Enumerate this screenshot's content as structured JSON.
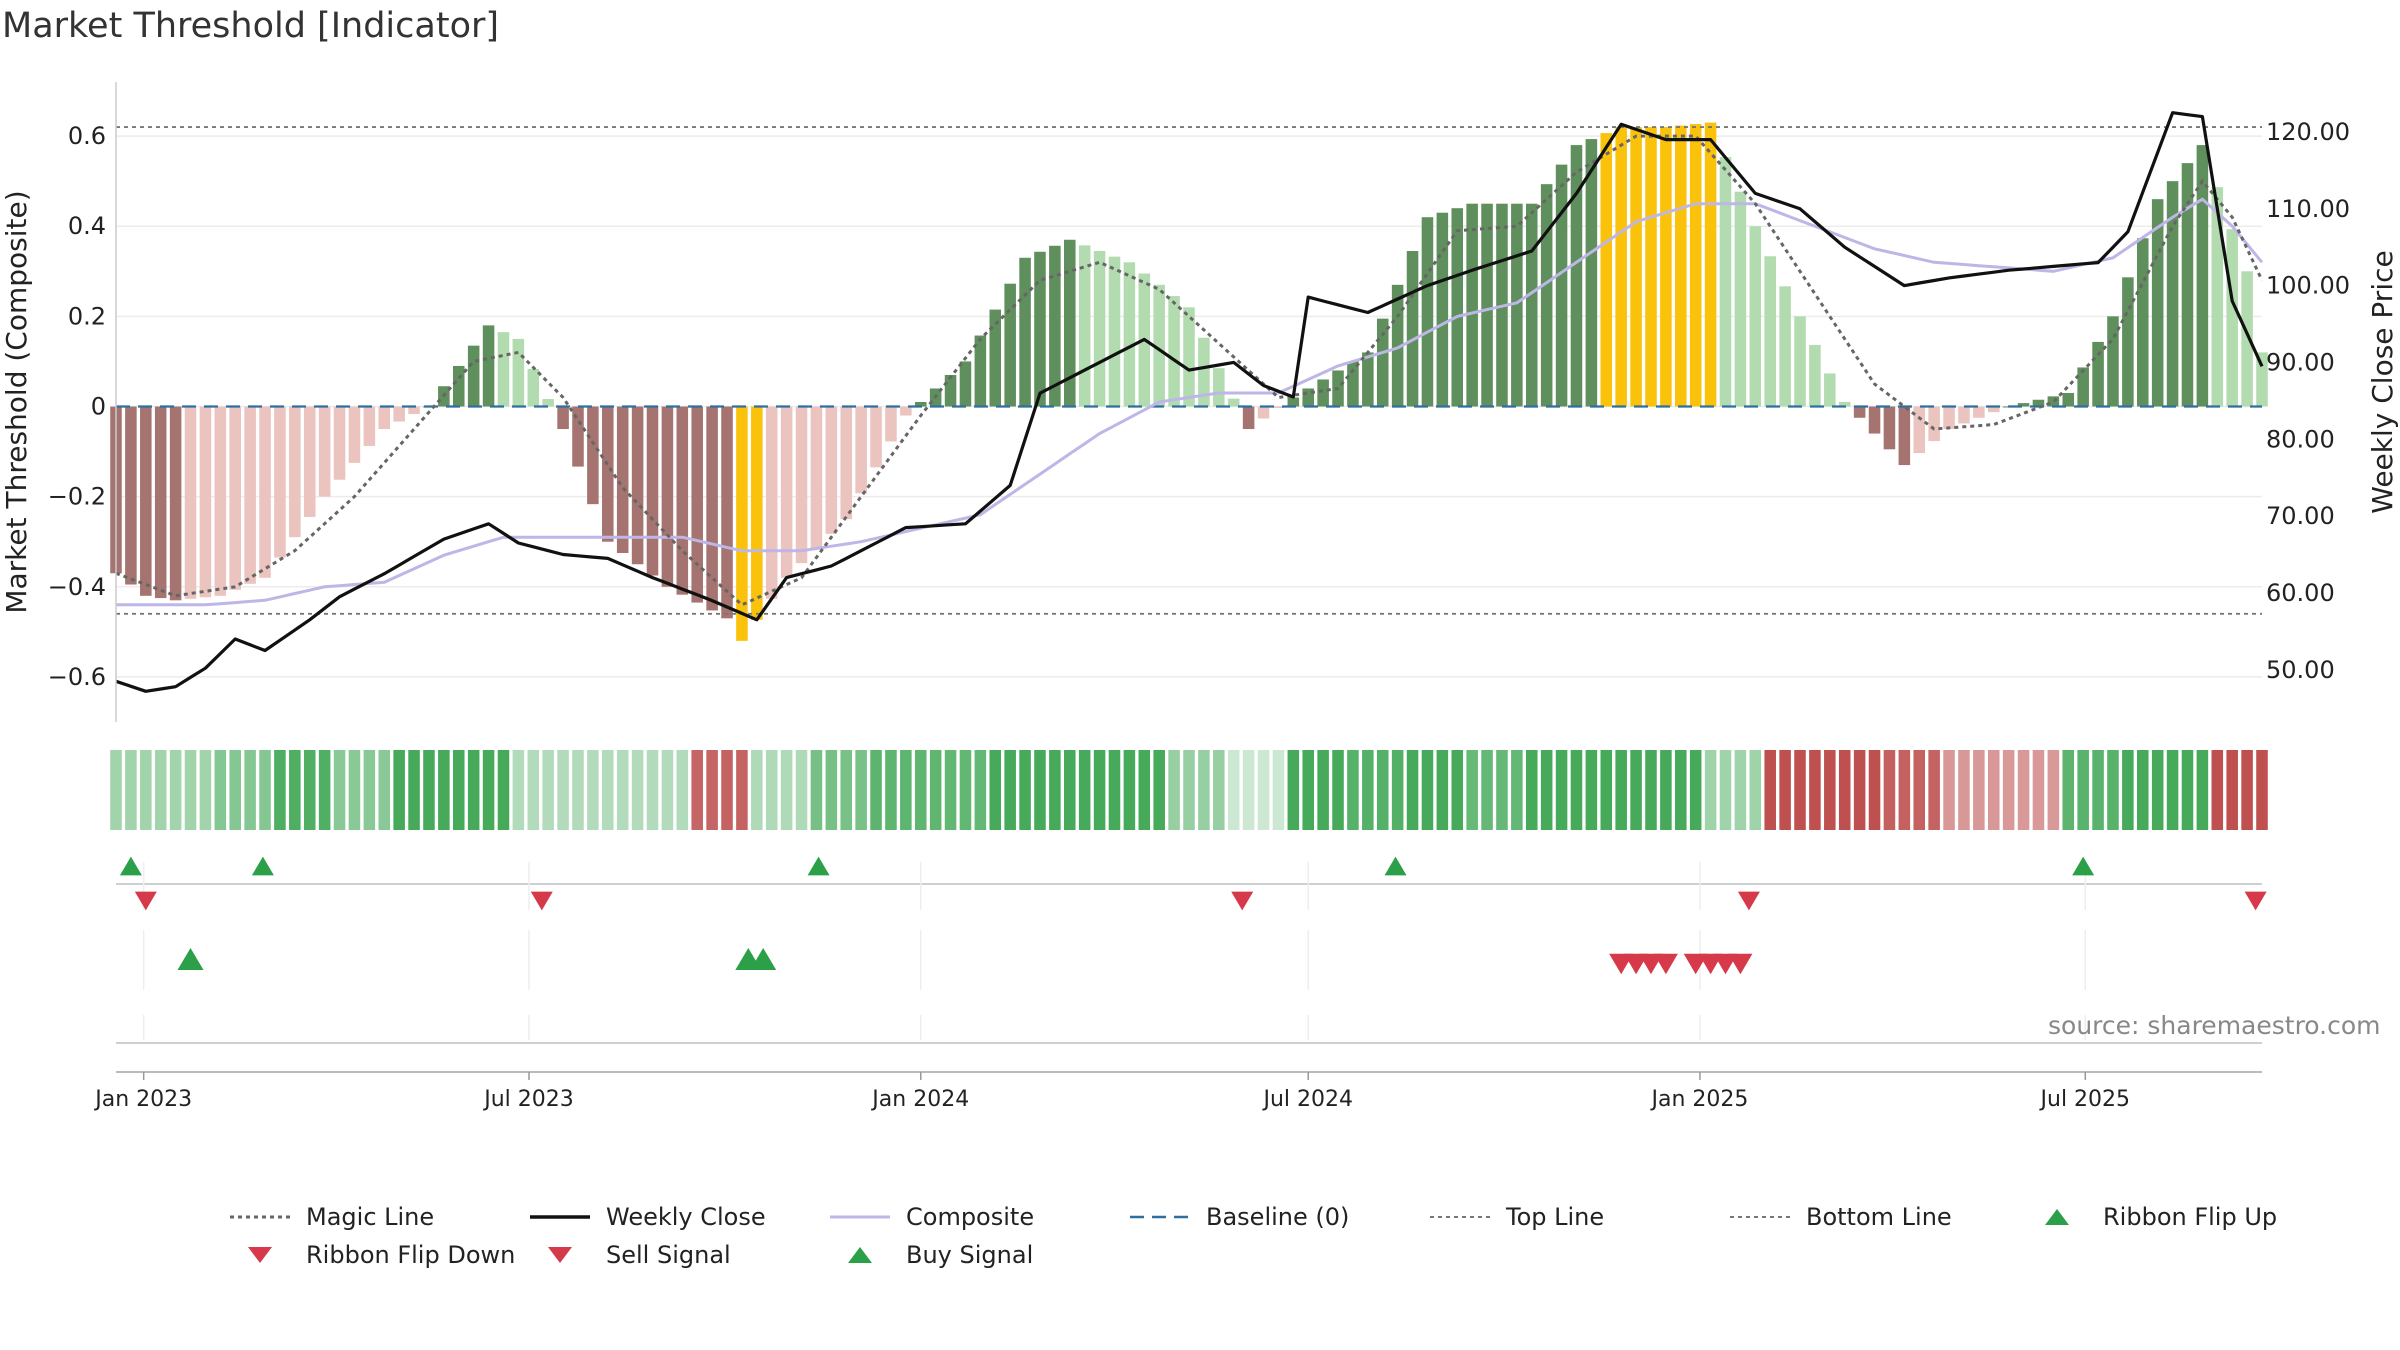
{
  "title": "Market Threshold [Indicator]",
  "source": "source: sharemaestro.com",
  "colors": {
    "bar_pos_strong": "#5f8f5c",
    "bar_pos_weak": "#b3dbb0",
    "bar_neg_strong": "#a57470",
    "bar_neg_weak": "#ebc3bf",
    "bar_extreme": "#fbc20b",
    "close": "#111111",
    "composite": "#bdb6e6",
    "magic": "#666666",
    "baseline": "#2f6f9f",
    "threshold": "#777777",
    "buy": "#2ca048",
    "sell": "#d63a4a"
  },
  "legend": [
    {
      "label": "Magic Line",
      "marker": "dot-line"
    },
    {
      "label": "Weekly Close",
      "marker": "solid-line"
    },
    {
      "label": "Composite",
      "marker": "light-line"
    },
    {
      "label": "Baseline (0)",
      "marker": "dash-line"
    },
    {
      "label": "Top Line",
      "marker": "fine-dash-line"
    },
    {
      "label": "Bottom Line",
      "marker": "fine-dash-line"
    },
    {
      "label": "Ribbon Flip Up",
      "marker": "triangle-up-green"
    },
    {
      "label": "Ribbon Flip Down",
      "marker": "triangle-down-red"
    },
    {
      "label": "Sell Signal",
      "marker": "triangle-down-red"
    },
    {
      "label": "Buy Signal",
      "marker": "triangle-up-green"
    }
  ],
  "chart_data": {
    "type": "bar",
    "ylabel_left": "Market Threshold (Composite)",
    "ylabel_right": "Weekly Close Price",
    "ylim_left": [
      -0.7,
      0.72
    ],
    "ylim_right": [
      43.2,
      126.5
    ],
    "yticks_left": [
      0.6,
      0.4,
      0.2,
      0,
      -0.2,
      -0.4,
      -0.6
    ],
    "yticks_left_labels": [
      "0.6",
      "0.4",
      "0.2",
      "0",
      "−0.2",
      "−0.4",
      "−0.6"
    ],
    "yticks_right": [
      120,
      110,
      100,
      90,
      80,
      70,
      60,
      50
    ],
    "yticks_right_labels": [
      "120.00",
      "110.00",
      "100.00",
      "90.00",
      "80.00",
      "70.00",
      "60.00",
      "50.00"
    ],
    "x_range": [
      "2022-12-19",
      "2025-09-22"
    ],
    "xticks": [
      {
        "date": "2023-01-01",
        "label": "Jan 2023"
      },
      {
        "date": "2023-07-01",
        "label": "Jul 2023"
      },
      {
        "date": "2024-01-01",
        "label": "Jan 2024"
      },
      {
        "date": "2024-07-01",
        "label": "Jul 2024"
      },
      {
        "date": "2025-01-01",
        "label": "Jan 2025"
      },
      {
        "date": "2025-07-01",
        "label": "Jul 2025"
      }
    ],
    "top_line": 0.62,
    "bottom_line": -0.46,
    "baseline": 0,
    "composite_key": [
      [
        "2022-12-19",
        -0.37
      ],
      [
        "2023-01-02",
        -0.42
      ],
      [
        "2023-01-16",
        -0.43
      ],
      [
        "2023-02-06",
        -0.42
      ],
      [
        "2023-02-27",
        -0.38
      ],
      [
        "2023-03-27",
        -0.2
      ],
      [
        "2023-04-24",
        -0.05
      ],
      [
        "2023-05-15",
        0
      ],
      [
        "2023-06-12",
        0.18
      ],
      [
        "2023-06-26",
        0.15
      ],
      [
        "2023-07-17",
        -0.05
      ],
      [
        "2023-08-07",
        -0.3
      ],
      [
        "2023-09-04",
        -0.4
      ],
      [
        "2023-10-02",
        -0.47
      ],
      [
        "2023-10-09",
        -0.52
      ],
      [
        "2023-10-30",
        -0.38
      ],
      [
        "2023-11-27",
        -0.25
      ],
      [
        "2023-12-25",
        -0.02
      ],
      [
        "2024-01-22",
        0.1
      ],
      [
        "2024-02-19",
        0.33
      ],
      [
        "2024-03-11",
        0.37
      ],
      [
        "2024-04-08",
        0.32
      ],
      [
        "2024-05-06",
        0.22
      ],
      [
        "2024-06-03",
        -0.05
      ],
      [
        "2024-06-24",
        0.02
      ],
      [
        "2024-07-29",
        0.12
      ],
      [
        "2024-08-26",
        0.42
      ],
      [
        "2024-09-16",
        0.45
      ],
      [
        "2024-10-14",
        0.45
      ],
      [
        "2024-11-04",
        0.58
      ],
      [
        "2024-11-25",
        0.62
      ],
      [
        "2024-12-16",
        0.62
      ],
      [
        "2025-01-06",
        0.63
      ],
      [
        "2025-01-27",
        0.4
      ],
      [
        "2025-02-17",
        0.2
      ],
      [
        "2025-03-10",
        0.01
      ],
      [
        "2025-04-07",
        -0.13
      ],
      [
        "2025-04-28",
        -0.05
      ],
      [
        "2025-05-26",
        0
      ],
      [
        "2025-06-23",
        0.03
      ],
      [
        "2025-07-14",
        0.2
      ],
      [
        "2025-08-04",
        0.46
      ],
      [
        "2025-08-25",
        0.58
      ],
      [
        "2025-09-15",
        0.3
      ],
      [
        "2025-09-22",
        0.12
      ]
    ],
    "close_key": [
      [
        "2022-12-19",
        48.5
      ],
      [
        "2023-01-02",
        47.2
      ],
      [
        "2023-01-16",
        47.8
      ],
      [
        "2023-01-30",
        50.2
      ],
      [
        "2023-02-13",
        54
      ],
      [
        "2023-02-27",
        52.5
      ],
      [
        "2023-03-20",
        56.5
      ],
      [
        "2023-04-03",
        59.5
      ],
      [
        "2023-04-24",
        62.5
      ],
      [
        "2023-05-22",
        67
      ],
      [
        "2023-06-12",
        69
      ],
      [
        "2023-06-26",
        66.5
      ],
      [
        "2023-07-17",
        65
      ],
      [
        "2023-08-07",
        64.5
      ],
      [
        "2023-08-28",
        62
      ],
      [
        "2023-09-25",
        59
      ],
      [
        "2023-10-16",
        56.5
      ],
      [
        "2023-10-30",
        62
      ],
      [
        "2023-11-20",
        63.5
      ],
      [
        "2023-12-25",
        68.5
      ],
      [
        "2024-01-22",
        69
      ],
      [
        "2024-02-12",
        74
      ],
      [
        "2024-02-26",
        86
      ],
      [
        "2024-03-11",
        88
      ],
      [
        "2024-03-25",
        90
      ],
      [
        "2024-04-15",
        93
      ],
      [
        "2024-05-06",
        89
      ],
      [
        "2024-05-27",
        90
      ],
      [
        "2024-06-10",
        87
      ],
      [
        "2024-06-24",
        85.5
      ],
      [
        "2024-07-01",
        98.5
      ],
      [
        "2024-07-29",
        96.5
      ],
      [
        "2024-08-26",
        100
      ],
      [
        "2024-09-16",
        102
      ],
      [
        "2024-10-14",
        104.5
      ],
      [
        "2024-11-04",
        112
      ],
      [
        "2024-11-25",
        121
      ],
      [
        "2024-12-16",
        119
      ],
      [
        "2025-01-06",
        119
      ],
      [
        "2025-01-27",
        112
      ],
      [
        "2025-02-17",
        110
      ],
      [
        "2025-03-10",
        105
      ],
      [
        "2025-04-07",
        100
      ],
      [
        "2025-04-28",
        101
      ],
      [
        "2025-05-26",
        102
      ],
      [
        "2025-06-16",
        102.5
      ],
      [
        "2025-07-07",
        103
      ],
      [
        "2025-07-21",
        107
      ],
      [
        "2025-08-11",
        122.5
      ],
      [
        "2025-08-25",
        122
      ],
      [
        "2025-09-08",
        98
      ],
      [
        "2025-09-22",
        89.5
      ]
    ],
    "composite_line_key": [
      [
        "2022-12-19",
        -0.44
      ],
      [
        "2023-01-30",
        -0.44
      ],
      [
        "2023-02-27",
        -0.43
      ],
      [
        "2023-03-27",
        -0.4
      ],
      [
        "2023-04-24",
        -0.39
      ],
      [
        "2023-05-22",
        -0.33
      ],
      [
        "2023-06-19",
        -0.29
      ],
      [
        "2023-07-17",
        -0.29
      ],
      [
        "2023-08-14",
        -0.29
      ],
      [
        "2023-09-11",
        -0.29
      ],
      [
        "2023-10-09",
        -0.32
      ],
      [
        "2023-11-06",
        -0.32
      ],
      [
        "2023-12-04",
        -0.3
      ],
      [
        "2024-01-01",
        -0.27
      ],
      [
        "2024-01-29",
        -0.24
      ],
      [
        "2024-02-26",
        -0.15
      ],
      [
        "2024-03-25",
        -0.06
      ],
      [
        "2024-04-22",
        0.01
      ],
      [
        "2024-05-20",
        0.03
      ],
      [
        "2024-06-17",
        0.03
      ],
      [
        "2024-07-15",
        0.09
      ],
      [
        "2024-08-12",
        0.13
      ],
      [
        "2024-09-09",
        0.2
      ],
      [
        "2024-10-07",
        0.23
      ],
      [
        "2024-11-04",
        0.32
      ],
      [
        "2024-12-02",
        0.41
      ],
      [
        "2024-12-30",
        0.45
      ],
      [
        "2025-01-27",
        0.45
      ],
      [
        "2025-02-24",
        0.4
      ],
      [
        "2025-03-24",
        0.35
      ],
      [
        "2025-04-21",
        0.32
      ],
      [
        "2025-05-19",
        0.31
      ],
      [
        "2025-06-16",
        0.3
      ],
      [
        "2025-07-14",
        0.33
      ],
      [
        "2025-08-11",
        0.42
      ],
      [
        "2025-08-25",
        0.46
      ],
      [
        "2025-09-08",
        0.4
      ],
      [
        "2025-09-22",
        0.32
      ]
    ],
    "magic_line_key": [
      [
        "2022-12-19",
        -0.37
      ],
      [
        "2023-01-16",
        -0.42
      ],
      [
        "2023-02-13",
        -0.4
      ],
      [
        "2023-03-13",
        -0.32
      ],
      [
        "2023-04-10",
        -0.2
      ],
      [
        "2023-05-08",
        -0.05
      ],
      [
        "2023-06-05",
        0.1
      ],
      [
        "2023-06-26",
        0.12
      ],
      [
        "2023-07-17",
        0.02
      ],
      [
        "2023-08-14",
        -0.18
      ],
      [
        "2023-09-11",
        -0.32
      ],
      [
        "2023-10-09",
        -0.44
      ],
      [
        "2023-11-06",
        -0.38
      ],
      [
        "2023-12-04",
        -0.2
      ],
      [
        "2024-01-01",
        -0.02
      ],
      [
        "2024-01-29",
        0.15
      ],
      [
        "2024-02-26",
        0.28
      ],
      [
        "2024-03-25",
        0.32
      ],
      [
        "2024-04-22",
        0.26
      ],
      [
        "2024-05-20",
        0.14
      ],
      [
        "2024-06-17",
        0.02
      ],
      [
        "2024-07-15",
        0.04
      ],
      [
        "2024-08-12",
        0.2
      ],
      [
        "2024-09-09",
        0.39
      ],
      [
        "2024-10-07",
        0.4
      ],
      [
        "2024-11-04",
        0.52
      ],
      [
        "2024-12-02",
        0.6
      ],
      [
        "2024-12-30",
        0.6
      ],
      [
        "2025-01-27",
        0.45
      ],
      [
        "2025-02-24",
        0.25
      ],
      [
        "2025-03-24",
        0.05
      ],
      [
        "2025-04-21",
        -0.05
      ],
      [
        "2025-05-19",
        -0.04
      ],
      [
        "2025-06-16",
        0.01
      ],
      [
        "2025-07-14",
        0.15
      ],
      [
        "2025-08-11",
        0.4
      ],
      [
        "2025-08-25",
        0.5
      ],
      [
        "2025-09-08",
        0.42
      ],
      [
        "2025-09-22",
        0.28
      ]
    ],
    "ribbon_flip_up": [
      "2022-12-26",
      "2023-02-26",
      "2023-11-14",
      "2024-08-11",
      "2025-06-30"
    ],
    "ribbon_flip_down": [
      "2023-01-02",
      "2023-07-07",
      "2024-05-31",
      "2025-01-24",
      "2025-09-19"
    ],
    "buy_signals": [
      "2023-01-23",
      "2023-10-12",
      "2023-10-19"
    ],
    "sell_signals": [
      "2024-11-25",
      "2024-12-02",
      "2024-12-09",
      "2024-12-16",
      "2024-12-30",
      "2025-01-06",
      "2025-01-13",
      "2025-01-20"
    ]
  }
}
